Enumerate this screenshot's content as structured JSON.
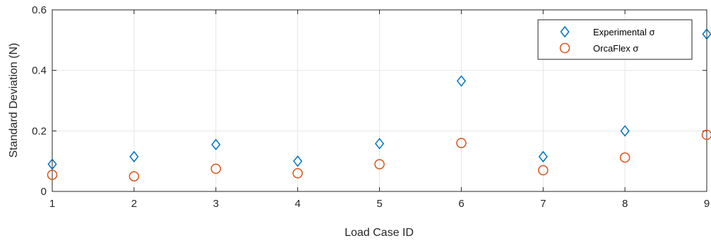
{
  "chart_data": {
    "type": "scatter",
    "xlabel": "Load Case ID",
    "ylabel": "Standard Deviation (N)",
    "xlim": [
      1,
      9
    ],
    "ylim": [
      0,
      0.6
    ],
    "xticks": [
      "1",
      "2",
      "3",
      "4",
      "5",
      "6",
      "7",
      "8",
      "9"
    ],
    "yticks": [
      "0",
      "0.2",
      "0.4",
      "0.6"
    ],
    "grid": true,
    "legend_position": "top-right",
    "series": [
      {
        "name": "Experimental σ",
        "marker": "diamond",
        "color": "#0072BD",
        "x": [
          1,
          2,
          3,
          4,
          5,
          6,
          7,
          8,
          9
        ],
        "y": [
          0.09,
          0.115,
          0.155,
          0.1,
          0.158,
          0.365,
          0.115,
          0.2,
          0.52
        ]
      },
      {
        "name": "OrcaFlex σ",
        "marker": "circle",
        "color": "#D95319",
        "x": [
          1,
          2,
          3,
          4,
          5,
          6,
          7,
          8,
          9
        ],
        "y": [
          0.055,
          0.05,
          0.075,
          0.06,
          0.09,
          0.16,
          0.07,
          0.112,
          0.187
        ]
      }
    ]
  }
}
